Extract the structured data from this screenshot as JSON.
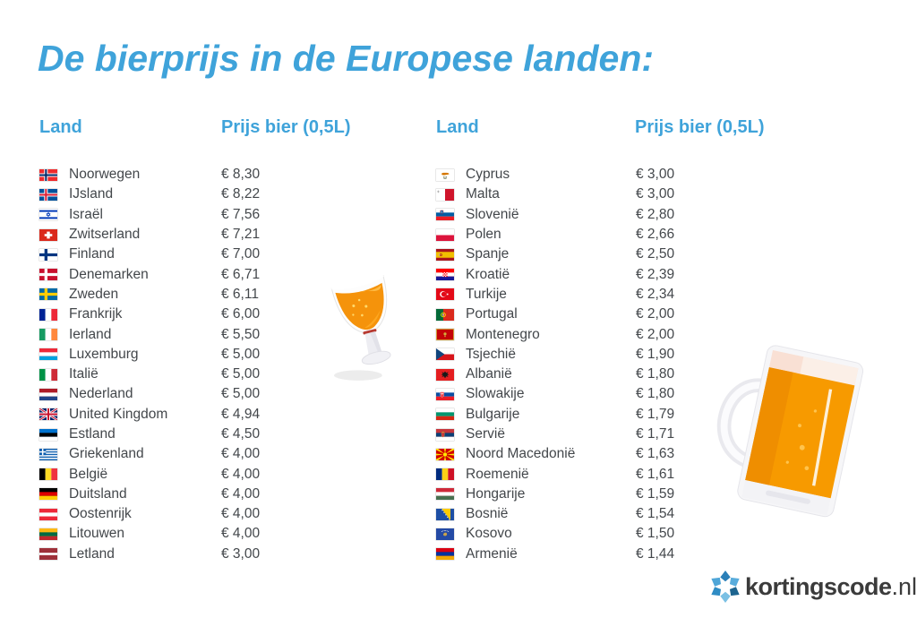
{
  "title": "De bierprijs in de Europese landen:",
  "tables": {
    "left": {
      "header_land": "Land",
      "header_price": "Prijs bier (0,5L)",
      "rows": [
        {
          "country": "Noorwegen",
          "price": "€ 8,30",
          "flag": "norway"
        },
        {
          "country": "IJsland",
          "price": "€ 8,22",
          "flag": "iceland"
        },
        {
          "country": "Israël",
          "price": "€ 7,56",
          "flag": "israel"
        },
        {
          "country": "Zwitserland",
          "price": "€ 7,21",
          "flag": "switzerland"
        },
        {
          "country": "Finland",
          "price": "€ 7,00",
          "flag": "finland"
        },
        {
          "country": "Denemarken",
          "price": "€ 6,71",
          "flag": "denmark"
        },
        {
          "country": "Zweden",
          "price": "€ 6,11",
          "flag": "sweden"
        },
        {
          "country": "Frankrijk",
          "price": "€ 6,00",
          "flag": "france"
        },
        {
          "country": "Ierland",
          "price": "€ 5,50",
          "flag": "ireland"
        },
        {
          "country": "Luxemburg",
          "price": "€ 5,00",
          "flag": "luxembourg"
        },
        {
          "country": "Italië",
          "price": "€ 5,00",
          "flag": "italy"
        },
        {
          "country": "Nederland",
          "price": "€ 5,00",
          "flag": "netherlands"
        },
        {
          "country": "United Kingdom",
          "price": "€ 4,94",
          "flag": "uk"
        },
        {
          "country": "Estland",
          "price": "€ 4,50",
          "flag": "estonia"
        },
        {
          "country": "Griekenland",
          "price": "€ 4,00",
          "flag": "greece"
        },
        {
          "country": "België",
          "price": "€ 4,00",
          "flag": "belgium"
        },
        {
          "country": "Duitsland",
          "price": "€ 4,00",
          "flag": "germany"
        },
        {
          "country": "Oostenrijk",
          "price": "€ 4,00",
          "flag": "austria"
        },
        {
          "country": "Litouwen",
          "price": "€ 4,00",
          "flag": "lithuania"
        },
        {
          "country": "Letland",
          "price": "€ 3,00",
          "flag": "latvia"
        }
      ]
    },
    "right": {
      "header_land": "Land",
      "header_price": "Prijs bier (0,5L)",
      "rows": [
        {
          "country": "Cyprus",
          "price": "€ 3,00",
          "flag": "cyprus"
        },
        {
          "country": "Malta",
          "price": "€ 3,00",
          "flag": "malta"
        },
        {
          "country": "Slovenië",
          "price": "€ 2,80",
          "flag": "slovenia"
        },
        {
          "country": "Polen",
          "price": "€ 2,66",
          "flag": "poland"
        },
        {
          "country": "Spanje",
          "price": "€ 2,50",
          "flag": "spain"
        },
        {
          "country": "Kroatië",
          "price": "€ 2,39",
          "flag": "croatia"
        },
        {
          "country": "Turkije",
          "price": "€ 2,34",
          "flag": "turkey"
        },
        {
          "country": "Portugal",
          "price": "€ 2,00",
          "flag": "portugal"
        },
        {
          "country": "Montenegro",
          "price": "€ 2,00",
          "flag": "montenegro"
        },
        {
          "country": "Tsjechië",
          "price": "€ 1,90",
          "flag": "czechia"
        },
        {
          "country": "Albanië",
          "price": "€ 1,80",
          "flag": "albania"
        },
        {
          "country": "Slowakije",
          "price": "€ 1,80",
          "flag": "slovakia"
        },
        {
          "country": "Bulgarije",
          "price": "€ 1,79",
          "flag": "bulgaria"
        },
        {
          "country": "Servië",
          "price": "€ 1,71",
          "flag": "serbia"
        },
        {
          "country": "Noord Macedonië",
          "price": "€ 1,63",
          "flag": "north-macedonia"
        },
        {
          "country": "Roemenië",
          "price": "€ 1,61",
          "flag": "romania"
        },
        {
          "country": "Hongarije",
          "price": "€ 1,59",
          "flag": "hungary"
        },
        {
          "country": "Bosnië",
          "price": "€ 1,54",
          "flag": "bosnia"
        },
        {
          "country": "Kosovo",
          "price": "€ 1,50",
          "flag": "kosovo"
        },
        {
          "country": "Armenië",
          "price": "€ 1,44",
          "flag": "armenia"
        }
      ]
    }
  },
  "logo": {
    "brand": "kortingscode",
    "tld": ".nl"
  },
  "colors": {
    "accent_blue": "#3FA3DA",
    "text_gray": "#43474B",
    "beer_orange": "#F79A00",
    "logo_text": "#3B3B3B"
  },
  "illustrations": {
    "glass": "beer-glass",
    "mug": "beer-mug"
  }
}
